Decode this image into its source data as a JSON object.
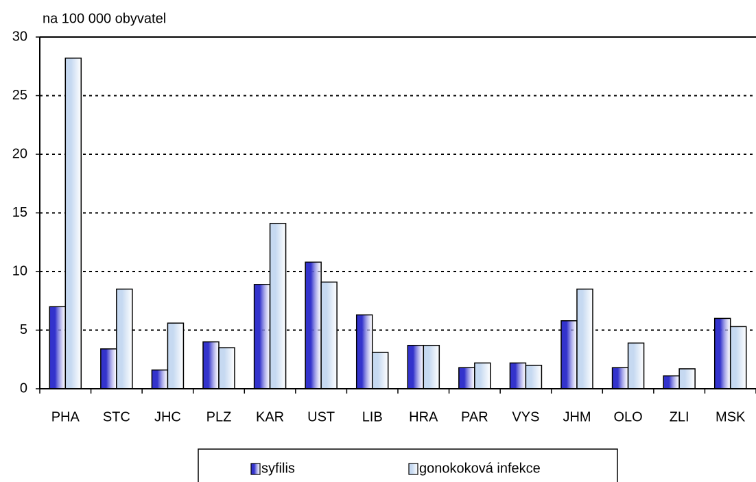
{
  "chart_data": {
    "type": "bar",
    "y_axis_label": "na 100 000 obyvatel",
    "categories": [
      "PHA",
      "STC",
      "JHC",
      "PLZ",
      "KAR",
      "UST",
      "LIB",
      "HRA",
      "PAR",
      "VYS",
      "JHM",
      "OLO",
      "ZLI",
      "MSK"
    ],
    "series": [
      {
        "name": "syfilis",
        "color": "#3333cc",
        "values": [
          7.0,
          3.4,
          1.6,
          4.0,
          8.9,
          10.8,
          6.3,
          3.7,
          1.8,
          2.2,
          5.8,
          1.8,
          1.1,
          6.0
        ]
      },
      {
        "name": "gonokoková infekce",
        "color": "#c6d9f1",
        "values": [
          28.2,
          8.5,
          5.6,
          3.5,
          14.1,
          9.1,
          3.1,
          3.7,
          2.2,
          2.0,
          8.5,
          3.9,
          1.7,
          5.3
        ]
      }
    ],
    "ylim": [
      0,
      30
    ],
    "yticks": [
      0,
      5,
      10,
      15,
      20,
      25,
      30
    ],
    "grid": true,
    "legend": "bottom"
  }
}
